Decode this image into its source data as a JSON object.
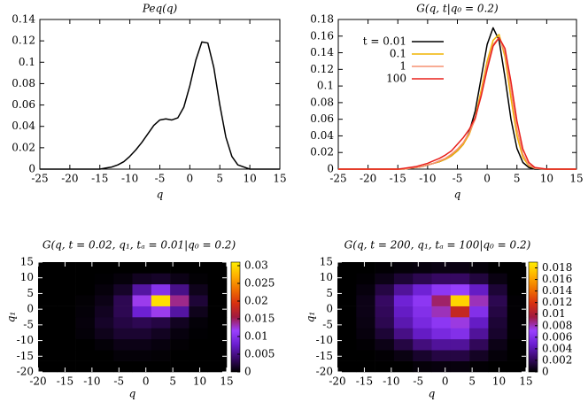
{
  "chart_data": [
    {
      "type": "line",
      "title": "Peq(q)",
      "xlabel": "q",
      "x": [
        -25,
        -20,
        -15,
        -14,
        -13,
        -12,
        -11,
        -10,
        -9,
        -8,
        -7,
        -6,
        -5,
        -4,
        -3,
        -2,
        -1,
        0,
        1,
        2,
        3,
        4,
        5,
        6,
        7,
        8,
        10,
        15
      ],
      "series": [
        {
          "color": "#000000",
          "values": [
            0,
            0,
            0,
            0.001,
            0.002,
            0.004,
            0.007,
            0.012,
            0.018,
            0.025,
            0.033,
            0.041,
            0.046,
            0.047,
            0.046,
            0.048,
            0.058,
            0.078,
            0.102,
            0.119,
            0.118,
            0.095,
            0.06,
            0.03,
            0.012,
            0.004,
            0,
            0
          ]
        }
      ],
      "xlim": [
        -25,
        15
      ],
      "xticks": [
        -25,
        -20,
        -15,
        -10,
        -5,
        0,
        5,
        10,
        15
      ],
      "ylim": [
        0,
        0.14
      ],
      "yticks": [
        0,
        0.02,
        0.04,
        0.06,
        0.08,
        0.1,
        0.12,
        0.14
      ]
    },
    {
      "type": "line",
      "title": "G(q, t|q₀ = 0.2)",
      "xlabel": "q",
      "legend": "upper left",
      "x": [
        -25,
        -20,
        -15,
        -14,
        -13,
        -12,
        -11,
        -10,
        -9,
        -8,
        -7,
        -6,
        -5,
        -4,
        -3,
        -2,
        -1,
        0,
        1,
        2,
        3,
        4,
        5,
        6,
        7,
        8,
        10,
        15
      ],
      "series": [
        {
          "name": "t = 0.01",
          "color": "#000000",
          "values": [
            0,
            0,
            0,
            0,
            0.001,
            0.002,
            0.003,
            0.005,
            0.007,
            0.009,
            0.012,
            0.016,
            0.022,
            0.03,
            0.045,
            0.07,
            0.11,
            0.15,
            0.17,
            0.155,
            0.11,
            0.06,
            0.025,
            0.008,
            0.002,
            0,
            0,
            0
          ]
        },
        {
          "name": "0.1",
          "color": "#f0b400",
          "values": [
            0,
            0,
            0,
            0,
            0.001,
            0.002,
            0.003,
            0.005,
            0.007,
            0.009,
            0.012,
            0.016,
            0.022,
            0.03,
            0.042,
            0.062,
            0.095,
            0.13,
            0.155,
            0.162,
            0.135,
            0.085,
            0.04,
            0.014,
            0.004,
            0.001,
            0,
            0
          ]
        },
        {
          "name": "1",
          "color": "#f59070",
          "values": [
            0,
            0,
            0,
            0,
            0.001,
            0.002,
            0.003,
            0.005,
            0.007,
            0.01,
            0.013,
            0.018,
            0.024,
            0.032,
            0.044,
            0.06,
            0.09,
            0.125,
            0.15,
            0.158,
            0.14,
            0.095,
            0.048,
            0.018,
            0.005,
            0.001,
            0,
            0
          ]
        },
        {
          "name": "100",
          "color": "#e8201c",
          "values": [
            0,
            0,
            0,
            0.001,
            0.002,
            0.003,
            0.005,
            0.007,
            0.01,
            0.013,
            0.017,
            0.022,
            0.03,
            0.038,
            0.048,
            0.062,
            0.088,
            0.12,
            0.148,
            0.158,
            0.145,
            0.105,
            0.058,
            0.024,
            0.008,
            0.002,
            0,
            0
          ]
        }
      ],
      "xlim": [
        -25,
        15
      ],
      "xticks": [
        -25,
        -20,
        -15,
        -10,
        -5,
        0,
        5,
        10,
        15
      ],
      "ylim": [
        0,
        0.18
      ],
      "yticks": [
        0,
        0.02,
        0.04,
        0.06,
        0.08,
        0.1,
        0.12,
        0.14,
        0.16,
        0.18
      ]
    },
    {
      "type": "heatmap",
      "title": "G(q, t = 0.02, q₁, tₐ = 0.01|q₀ = 0.2)",
      "xlabel": "q",
      "ylabel": "q₁",
      "xbins": [
        -20,
        -16.5,
        -13,
        -9.5,
        -6,
        -2.5,
        1,
        4.5,
        8,
        11.5,
        15
      ],
      "ybins": [
        -20,
        -16.5,
        -13,
        -9.5,
        -6,
        -2.5,
        1,
        4.5,
        8,
        11.5,
        15
      ],
      "z": [
        [
          0,
          0,
          0,
          0,
          0,
          0,
          0,
          0,
          0,
          0
        ],
        [
          0,
          0,
          0,
          0,
          0.0003,
          0.0003,
          0.0002,
          0,
          0,
          0
        ],
        [
          0,
          0,
          0,
          0.0003,
          0.0008,
          0.0008,
          0.0005,
          0.0002,
          0,
          0
        ],
        [
          0,
          0,
          0.0003,
          0.001,
          0.0018,
          0.0018,
          0.0012,
          0.0005,
          0.0001,
          0
        ],
        [
          0,
          0,
          0.0004,
          0.0015,
          0.0025,
          0.003,
          0.0025,
          0.0012,
          0.0003,
          0
        ],
        [
          0,
          0,
          0.0003,
          0.0012,
          0.003,
          0.008,
          0.012,
          0.006,
          0.001,
          0
        ],
        [
          0,
          0,
          0.0002,
          0.0008,
          0.003,
          0.012,
          0.03,
          0.014,
          0.002,
          0
        ],
        [
          0,
          0,
          0,
          0.0004,
          0.0015,
          0.006,
          0.01,
          0.005,
          0.001,
          0
        ],
        [
          0,
          0,
          0,
          0.0001,
          0.0004,
          0.0012,
          0.0015,
          0.0008,
          0.0002,
          0
        ],
        [
          0,
          0,
          0,
          0,
          0,
          0,
          0,
          0,
          0,
          0
        ]
      ],
      "colormap": [
        "#000000",
        "#3a0a6a",
        "#6a1ed0",
        "#9a40ff",
        "#a01a40",
        "#d83010",
        "#f07000",
        "#ffb000",
        "#ffee00"
      ],
      "xlim": [
        -20,
        15
      ],
      "xticks": [
        -20,
        -15,
        -10,
        -5,
        0,
        5,
        10,
        15
      ],
      "ylim": [
        -20,
        15
      ],
      "yticks": [
        -20,
        -15,
        -10,
        -5,
        0,
        5,
        10,
        15
      ],
      "zlim": [
        0,
        0.031
      ],
      "zticks": [
        0,
        0.005,
        0.01,
        0.015,
        0.02,
        0.025,
        0.03
      ]
    },
    {
      "type": "heatmap",
      "title": "G(q, t = 200, q₁, tₐ = 100|q₀ = 0.2)",
      "xlabel": "q",
      "ylabel": "q₁",
      "xbins": [
        -20,
        -16.5,
        -13,
        -9.5,
        -6,
        -2.5,
        1,
        4.5,
        8,
        11.5,
        15
      ],
      "ybins": [
        -20,
        -16.5,
        -13,
        -9.5,
        -6,
        -2.5,
        1,
        4.5,
        8,
        11.5,
        15
      ],
      "z": [
        [
          0,
          0,
          0,
          0,
          0.0002,
          0.0003,
          0.0003,
          0.0001,
          0,
          0
        ],
        [
          0,
          0,
          0.0001,
          0.0004,
          0.001,
          0.0015,
          0.0015,
          0.0008,
          0.0002,
          0
        ],
        [
          0,
          0.0001,
          0.0005,
          0.0015,
          0.0028,
          0.0035,
          0.0035,
          0.002,
          0.0005,
          0
        ],
        [
          0,
          0.0003,
          0.0012,
          0.003,
          0.0045,
          0.0055,
          0.006,
          0.0035,
          0.001,
          0.0001
        ],
        [
          0,
          0.0004,
          0.0018,
          0.004,
          0.0055,
          0.0065,
          0.0075,
          0.0045,
          0.0012,
          0.0001
        ],
        [
          0,
          0.0005,
          0.002,
          0.0045,
          0.006,
          0.008,
          0.011,
          0.006,
          0.0015,
          0.0001
        ],
        [
          0,
          0.0005,
          0.0022,
          0.005,
          0.0065,
          0.009,
          0.018,
          0.008,
          0.0018,
          0.0001
        ],
        [
          0,
          0.0003,
          0.0015,
          0.0035,
          0.005,
          0.0065,
          0.007,
          0.0045,
          0.0012,
          0
        ],
        [
          0,
          0.0001,
          0.0005,
          0.0012,
          0.0018,
          0.0022,
          0.0022,
          0.0014,
          0.0004,
          0
        ],
        [
          0,
          0,
          0.0001,
          0.0002,
          0.0003,
          0.0004,
          0.0004,
          0.0002,
          0,
          0
        ]
      ],
      "colormap": [
        "#000000",
        "#3a0a6a",
        "#6a1ed0",
        "#9a40ff",
        "#a01a40",
        "#d83010",
        "#f07000",
        "#ffb000",
        "#ffee00"
      ],
      "xlim": [
        -20,
        15
      ],
      "xticks": [
        -20,
        -15,
        -10,
        -5,
        0,
        5,
        10,
        15
      ],
      "ylim": [
        -20,
        15
      ],
      "yticks": [
        -20,
        -15,
        -10,
        -5,
        0,
        5,
        10,
        15
      ],
      "zlim": [
        0,
        0.019
      ],
      "zticks": [
        0,
        0.002,
        0.004,
        0.006,
        0.008,
        0.01,
        0.012,
        0.014,
        0.016,
        0.018
      ]
    }
  ]
}
